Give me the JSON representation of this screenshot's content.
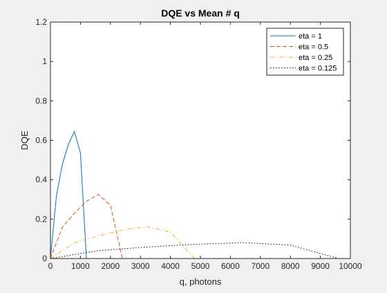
{
  "chart_data": {
    "type": "line",
    "title": "DQE vs Mean # q",
    "xlabel": "q, photons",
    "ylabel": "DQE",
    "xlim": [
      0,
      10000
    ],
    "ylim": [
      0,
      1.2
    ],
    "xticks": [
      0,
      1000,
      2000,
      3000,
      4000,
      5000,
      6000,
      7000,
      8000,
      9000,
      10000
    ],
    "yticks": [
      0,
      0.2,
      0.4,
      0.6,
      0.8,
      1,
      1.2
    ],
    "legend_position": "top-right",
    "series": [
      {
        "name": "eta = 1",
        "color": "#0072BD",
        "dash": "solid",
        "points": [
          [
            0,
            0
          ],
          [
            200,
            0.32
          ],
          [
            400,
            0.48
          ],
          [
            600,
            0.58
          ],
          [
            800,
            0.645
          ],
          [
            1000,
            0.535
          ],
          [
            1200,
            0
          ],
          [
            10000,
            0
          ]
        ]
      },
      {
        "name": "eta = 0.5",
        "color": "#D95319",
        "dash": "dashed",
        "points": [
          [
            0,
            0
          ],
          [
            400,
            0.16
          ],
          [
            800,
            0.23
          ],
          [
            1200,
            0.29
          ],
          [
            1600,
            0.325
          ],
          [
            2000,
            0.27
          ],
          [
            2400,
            0
          ],
          [
            10000,
            0
          ]
        ]
      },
      {
        "name": "eta = 0.25",
        "color": "#EDB120",
        "dash": "dashdot",
        "points": [
          [
            0,
            0
          ],
          [
            800,
            0.08
          ],
          [
            1600,
            0.115
          ],
          [
            2400,
            0.145
          ],
          [
            3200,
            0.162
          ],
          [
            4000,
            0.135
          ],
          [
            4800,
            0
          ],
          [
            10000,
            0
          ]
        ]
      },
      {
        "name": "eta = 0.125",
        "color": "#000000",
        "dash": "dotted",
        "points": [
          [
            0,
            0
          ],
          [
            1600,
            0.04
          ],
          [
            3200,
            0.058
          ],
          [
            4800,
            0.072
          ],
          [
            6400,
            0.081
          ],
          [
            8000,
            0.068
          ],
          [
            9600,
            0
          ],
          [
            10000,
            0
          ]
        ]
      }
    ]
  }
}
